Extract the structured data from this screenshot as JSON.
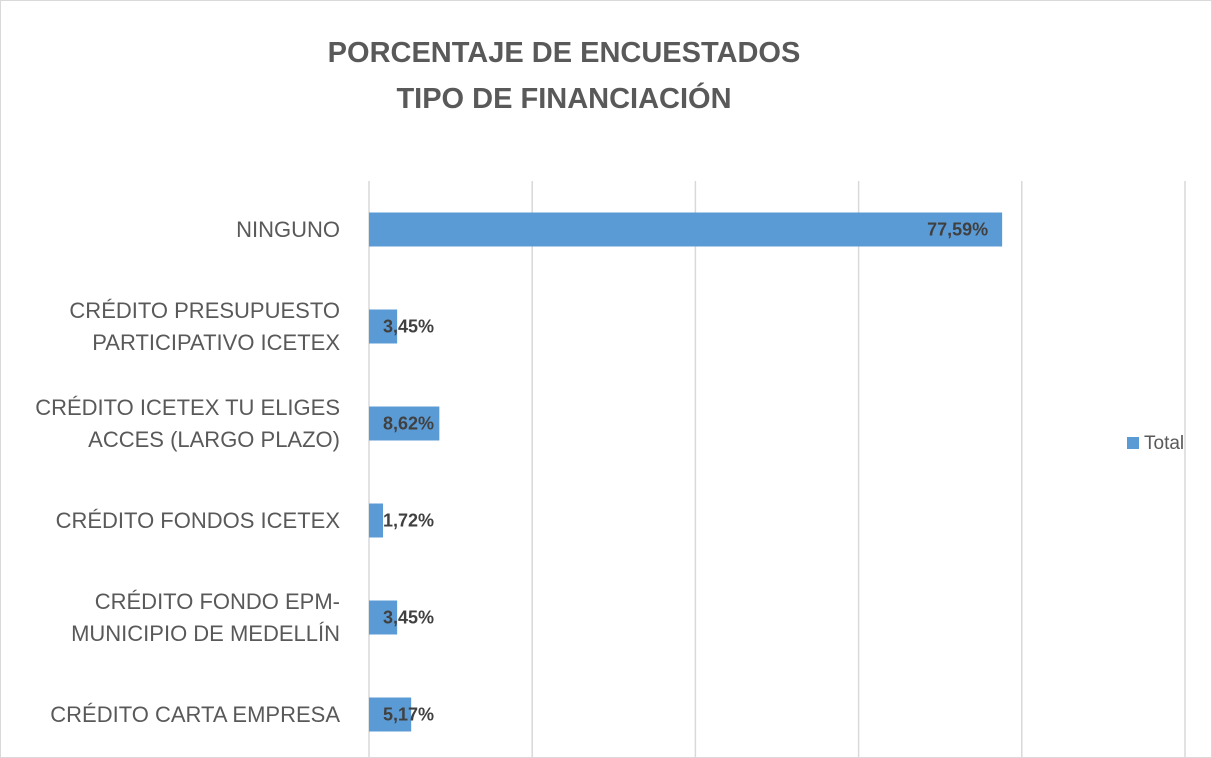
{
  "chart_data": {
    "type": "barh",
    "title": "PORCENTAJE DE ENCUESTADOS\nTIPO DE FINANCIACIÓN",
    "categories": [
      "NINGUNO",
      "CRÉDITO PRESUPUESTO\nPARTICIPATIVO ICETEX",
      "CRÉDITO ICETEX TU ELIGES\nACCES (LARGO PLAZO)",
      "CRÉDITO FONDOS ICETEX",
      "CRÉDITO FONDO EPM-\nMUNICIPIO DE MEDELLÍN",
      "CRÉDITO CARTA EMPRESA"
    ],
    "series": [
      {
        "name": "Total",
        "color": "#5b9bd5",
        "values": [
          77.59,
          3.45,
          8.62,
          1.72,
          3.45,
          5.17
        ],
        "value_labels": [
          "77,59%",
          "3,45%",
          "8,62%",
          "1,72%",
          "3,45%",
          "5,17%"
        ]
      }
    ],
    "xlim": [
      0,
      100
    ],
    "xticks": [
      0,
      20,
      40,
      60,
      80,
      100
    ],
    "grid": true,
    "legend": "right"
  }
}
